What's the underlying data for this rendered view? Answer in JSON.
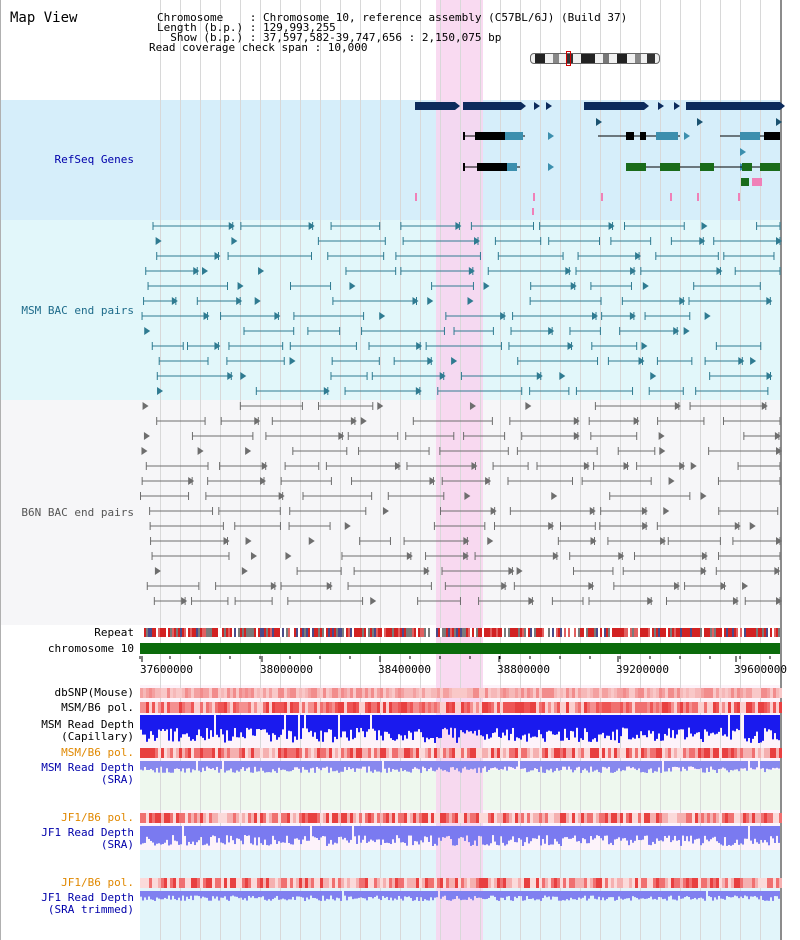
{
  "header": {
    "title": "Map View",
    "info_lines": [
      "Chromosome    : Chromosome 10, reference assembly (C57BL/6J) (Build 37)",
      "Length (b.p.) : 129,993,255",
      "  Show (b.p.) : 37,597,582-39,747,656 : 2,150,075 bp",
      "Read coverage check span : 10,000"
    ]
  },
  "tracks": {
    "refseq": "RefSeq Genes",
    "msm_bac": "MSM BAC end pairs",
    "b6n_bac": "B6N BAC end pairs",
    "repeat": "Repeat",
    "chromosome": "chromosome 10",
    "dbsnp": "dbSNP(Mouse)",
    "msm_pol_top": "MSM/B6 pol.",
    "msm_depth_cap_1": "MSM Read Depth",
    "msm_depth_cap_2": "(Capillary)",
    "msm_pol_sra": "MSM/B6 pol.",
    "msm_depth_sra_1": "MSM Read Depth",
    "msm_depth_sra_2": "(SRA)",
    "jf1_pol": "JF1/B6 pol.",
    "jf1_depth_1": "JF1 Read Depth",
    "jf1_depth_2": "(SRA)",
    "jf1_pol_trim": "JF1/B6 pol.",
    "jf1_trim_1": "JF1 Read Depth",
    "jf1_trim_2": "(SRA trimmed)"
  },
  "axis": {
    "ticks": [
      "37600000",
      "38000000",
      "38400000",
      "38800000",
      "39200000",
      "39600000"
    ]
  },
  "colors": {
    "refseq_bg": "#d6eefa",
    "msm_bg": "#e2f7fa",
    "b6n_bg": "#f6f6f8",
    "highlight": "#f8d3ef",
    "gene_dark": "#0d2b5c",
    "gene_black": "#000000",
    "gene_green": "#1a6b1a",
    "gene_teal": "#3c8fae",
    "msm_line": "#2f7b91",
    "b6n_line": "#6e6e6e",
    "chrom_green": "#0b6b0b",
    "label_blue": "#0000aa",
    "label_orange": "#e08800",
    "label_teal": "#1e6b8a"
  }
}
